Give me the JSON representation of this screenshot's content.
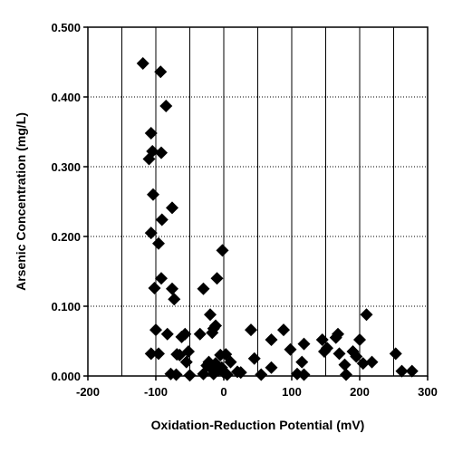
{
  "chart_data": {
    "type": "scatter",
    "xlabel": "Oxidation-Reduction Potential (mV)",
    "ylabel": "Arsenic Concentration (mg/L)",
    "xlim": [
      -200,
      300
    ],
    "ylim": [
      0,
      0.5
    ],
    "x_ticks": [
      -200,
      -100,
      0,
      100,
      200,
      300
    ],
    "x_tick_labels": [
      "-200",
      "-100",
      "0",
      "100",
      "200",
      "300"
    ],
    "x_gridlines": [
      -150,
      -100,
      -50,
      0,
      50,
      100,
      150,
      200,
      250
    ],
    "y_ticks": [
      0,
      0.1,
      0.2,
      0.3,
      0.4,
      0.5
    ],
    "y_tick_labels": [
      "0.000",
      "0.100",
      "0.200",
      "0.300",
      "0.400",
      "0.500"
    ],
    "y_gridlines": [
      0.1,
      0.2,
      0.3,
      0.4
    ],
    "grid": true,
    "marker": "diamond",
    "marker_color": "#000000",
    "points": [
      {
        "x": -119,
        "y": 0.448
      },
      {
        "x": -93,
        "y": 0.436
      },
      {
        "x": -85,
        "y": 0.387
      },
      {
        "x": -107,
        "y": 0.348
      },
      {
        "x": -105,
        "y": 0.322
      },
      {
        "x": -110,
        "y": 0.311
      },
      {
        "x": -92,
        "y": 0.32
      },
      {
        "x": -104,
        "y": 0.26
      },
      {
        "x": -76,
        "y": 0.241
      },
      {
        "x": -91,
        "y": 0.224
      },
      {
        "x": -107,
        "y": 0.205
      },
      {
        "x": -96,
        "y": 0.19
      },
      {
        "x": -92,
        "y": 0.14
      },
      {
        "x": -102,
        "y": 0.126
      },
      {
        "x": -76,
        "y": 0.125
      },
      {
        "x": -73,
        "y": 0.11
      },
      {
        "x": -100,
        "y": 0.066
      },
      {
        "x": -83,
        "y": 0.06
      },
      {
        "x": -107,
        "y": 0.032
      },
      {
        "x": -96,
        "y": 0.032
      },
      {
        "x": -69,
        "y": 0.031
      },
      {
        "x": -62,
        "y": 0.056
      },
      {
        "x": -57,
        "y": 0.06
      },
      {
        "x": -52,
        "y": 0.035
      },
      {
        "x": -55,
        "y": 0.02
      },
      {
        "x": -65,
        "y": 0.03
      },
      {
        "x": -78,
        "y": 0.003
      },
      {
        "x": -70,
        "y": 0.002
      },
      {
        "x": -50,
        "y": 0.001
      },
      {
        "x": -35,
        "y": 0.06
      },
      {
        "x": -30,
        "y": 0.125
      },
      {
        "x": -10,
        "y": 0.14
      },
      {
        "x": -2,
        "y": 0.18
      },
      {
        "x": -20,
        "y": 0.088
      },
      {
        "x": -15,
        "y": 0.068
      },
      {
        "x": -12,
        "y": 0.072
      },
      {
        "x": -17,
        "y": 0.062
      },
      {
        "x": -5,
        "y": 0.03
      },
      {
        "x": 3,
        "y": 0.031
      },
      {
        "x": -25,
        "y": 0.015
      },
      {
        "x": -22,
        "y": 0.02
      },
      {
        "x": -18,
        "y": 0.01
      },
      {
        "x": -12,
        "y": 0.018
      },
      {
        "x": -8,
        "y": 0.008
      },
      {
        "x": -3,
        "y": 0.012
      },
      {
        "x": 0,
        "y": 0.005
      },
      {
        "x": 5,
        "y": 0.002
      },
      {
        "x": -30,
        "y": 0.003
      },
      {
        "x": -15,
        "y": 0.003
      },
      {
        "x": 10,
        "y": 0.02
      },
      {
        "x": 20,
        "y": 0.006
      },
      {
        "x": 25,
        "y": 0.005
      },
      {
        "x": 40,
        "y": 0.066
      },
      {
        "x": 45,
        "y": 0.025
      },
      {
        "x": 55,
        "y": 0.002
      },
      {
        "x": 70,
        "y": 0.052
      },
      {
        "x": 70,
        "y": 0.012
      },
      {
        "x": 88,
        "y": 0.066
      },
      {
        "x": 98,
        "y": 0.038
      },
      {
        "x": 108,
        "y": 0.003
      },
      {
        "x": 118,
        "y": 0.002
      },
      {
        "x": 118,
        "y": 0.046
      },
      {
        "x": 115,
        "y": 0.02
      },
      {
        "x": 145,
        "y": 0.052
      },
      {
        "x": 148,
        "y": 0.035
      },
      {
        "x": 152,
        "y": 0.04
      },
      {
        "x": 165,
        "y": 0.055
      },
      {
        "x": 168,
        "y": 0.06
      },
      {
        "x": 170,
        "y": 0.032
      },
      {
        "x": 178,
        "y": 0.016
      },
      {
        "x": 180,
        "y": 0.002
      },
      {
        "x": 190,
        "y": 0.035
      },
      {
        "x": 195,
        "y": 0.028
      },
      {
        "x": 200,
        "y": 0.052
      },
      {
        "x": 205,
        "y": 0.018
      },
      {
        "x": 210,
        "y": 0.088
      },
      {
        "x": 218,
        "y": 0.02
      },
      {
        "x": 253,
        "y": 0.032
      },
      {
        "x": 262,
        "y": 0.007
      },
      {
        "x": 277,
        "y": 0.007
      }
    ]
  }
}
